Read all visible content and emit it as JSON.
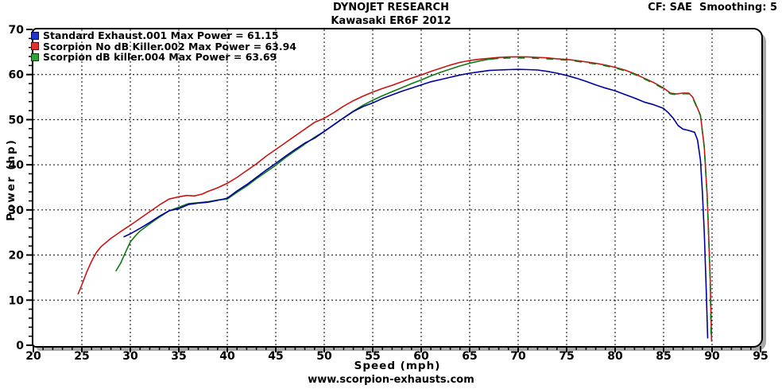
{
  "header": {
    "title": "DYNOJET RESEARCH",
    "subtitle": "Kawasaki ER6F 2012",
    "settings": "CF: SAE  Smoothing: 5"
  },
  "footer": {
    "website": "www.scorpion-exhausts.com"
  },
  "chart_data": {
    "type": "line",
    "title": "DYNOJET RESEARCH",
    "subtitle": "Kawasaki ER6F 2012",
    "xlabel": "Speed (mph)",
    "ylabel": "Power (hp)",
    "xlim": [
      20,
      95
    ],
    "ylim": [
      0,
      70
    ],
    "x_ticks": [
      20,
      25,
      30,
      35,
      40,
      45,
      50,
      55,
      60,
      65,
      70,
      75,
      80,
      85,
      90,
      95
    ],
    "y_ticks": [
      0,
      10,
      20,
      30,
      40,
      50,
      60,
      70
    ],
    "x_minor_step": 1,
    "y_minor_step": 2,
    "grid": true,
    "grid_color": "#000000",
    "shadow_color": "#a9a9a9",
    "legend_position": "top-left",
    "series": [
      {
        "name": "Standard Exhaust.001 Max Power = 61.15",
        "max_power": 61.15,
        "color": "#0000a0",
        "swatch_fill": "#2233cc",
        "swatch_border": "#000066",
        "points": [
          [
            29.3,
            24.0
          ],
          [
            30,
            24.7
          ],
          [
            31,
            25.9
          ],
          [
            32,
            27.2
          ],
          [
            33,
            28.6
          ],
          [
            34,
            29.8
          ],
          [
            35,
            30.3
          ],
          [
            36,
            31.2
          ],
          [
            37,
            31.5
          ],
          [
            38,
            31.7
          ],
          [
            39,
            32.1
          ],
          [
            40,
            32.6
          ],
          [
            41,
            34.2
          ],
          [
            42,
            35.6
          ],
          [
            43,
            37.2
          ],
          [
            44,
            38.8
          ],
          [
            45,
            40.3
          ],
          [
            46,
            41.9
          ],
          [
            47,
            43.4
          ],
          [
            48,
            44.8
          ],
          [
            49,
            45.9
          ],
          [
            50,
            47.4
          ],
          [
            51,
            48.9
          ],
          [
            52,
            50.4
          ],
          [
            53,
            51.8
          ],
          [
            54,
            52.9
          ],
          [
            55,
            53.7
          ],
          [
            56,
            54.7
          ],
          [
            57,
            55.5
          ],
          [
            58,
            56.3
          ],
          [
            59,
            57.0
          ],
          [
            60,
            57.7
          ],
          [
            61,
            58.4
          ],
          [
            62,
            58.9
          ],
          [
            63,
            59.4
          ],
          [
            64,
            59.9
          ],
          [
            65,
            60.3
          ],
          [
            66,
            60.6
          ],
          [
            67,
            60.9
          ],
          [
            68,
            61.0
          ],
          [
            69,
            61.1
          ],
          [
            70,
            61.15
          ],
          [
            71,
            61.1
          ],
          [
            72,
            61.0
          ],
          [
            73,
            60.7
          ],
          [
            74,
            60.3
          ],
          [
            75,
            59.8
          ],
          [
            76,
            59.2
          ],
          [
            77,
            58.5
          ],
          [
            78,
            57.7
          ],
          [
            79,
            57.0
          ],
          [
            80,
            56.4
          ],
          [
            81,
            55.6
          ],
          [
            82,
            54.8
          ],
          [
            83,
            53.9
          ],
          [
            84,
            53.3
          ],
          [
            85,
            52.5
          ],
          [
            85.5,
            51.5
          ],
          [
            86,
            50.3
          ],
          [
            86.5,
            48.7
          ],
          [
            87,
            47.9
          ],
          [
            87.6,
            47.6
          ],
          [
            88.2,
            47.2
          ],
          [
            88.5,
            45.5
          ],
          [
            88.8,
            41.0
          ],
          [
            89.0,
            34.0
          ],
          [
            89.2,
            25.0
          ],
          [
            89.4,
            12.0
          ],
          [
            89.55,
            1.5
          ]
        ]
      },
      {
        "name": "Scorpion No dB Killer.002 Max Power = 63.94",
        "max_power": 63.94,
        "color": "#c81414",
        "swatch_fill": "#e23333",
        "swatch_border": "#770000",
        "points": [
          [
            24.6,
            11.3
          ],
          [
            25,
            13.4
          ],
          [
            25.5,
            16.2
          ],
          [
            26,
            18.6
          ],
          [
            26.5,
            20.6
          ],
          [
            27,
            21.9
          ],
          [
            28,
            23.7
          ],
          [
            29,
            25.2
          ],
          [
            30,
            26.6
          ],
          [
            31,
            28.1
          ],
          [
            32,
            29.6
          ],
          [
            33,
            31.1
          ],
          [
            34,
            32.4
          ],
          [
            35,
            32.9
          ],
          [
            35.8,
            33.2
          ],
          [
            36.6,
            33.1
          ],
          [
            37.4,
            33.5
          ],
          [
            38,
            34.1
          ],
          [
            39,
            34.9
          ],
          [
            40,
            35.9
          ],
          [
            41,
            37.2
          ],
          [
            42,
            38.7
          ],
          [
            43,
            40.2
          ],
          [
            44,
            41.9
          ],
          [
            45,
            43.4
          ],
          [
            46,
            44.9
          ],
          [
            47,
            46.4
          ],
          [
            48,
            47.9
          ],
          [
            49,
            49.4
          ],
          [
            50,
            50.3
          ],
          [
            51,
            51.6
          ],
          [
            52,
            53.0
          ],
          [
            53,
            54.2
          ],
          [
            54,
            55.2
          ],
          [
            55,
            56.1
          ],
          [
            56,
            56.9
          ],
          [
            57,
            57.6
          ],
          [
            58,
            58.4
          ],
          [
            59,
            59.2
          ],
          [
            60,
            59.9
          ],
          [
            61,
            60.7
          ],
          [
            62,
            61.4
          ],
          [
            63,
            62.1
          ],
          [
            64,
            62.7
          ],
          [
            65,
            63.1
          ],
          [
            66,
            63.4
          ],
          [
            67,
            63.6
          ],
          [
            68,
            63.8
          ],
          [
            69,
            63.9
          ],
          [
            70,
            63.94
          ],
          [
            71,
            63.9
          ],
          [
            72,
            63.8
          ],
          [
            73,
            63.7
          ],
          [
            74,
            63.5
          ],
          [
            75,
            63.35
          ],
          [
            76,
            63.1
          ],
          [
            77,
            62.8
          ],
          [
            78,
            62.5
          ],
          [
            79,
            62.1
          ],
          [
            80,
            61.6
          ],
          [
            81,
            61.0
          ],
          [
            82,
            60.2
          ],
          [
            83,
            59.2
          ],
          [
            84,
            58.2
          ],
          [
            85,
            57.0
          ],
          [
            85.7,
            55.9
          ],
          [
            86.3,
            55.7
          ],
          [
            87,
            55.9
          ],
          [
            87.6,
            55.9
          ],
          [
            88,
            55.0
          ],
          [
            88.4,
            53.0
          ],
          [
            88.8,
            51.0
          ],
          [
            89.2,
            44.0
          ],
          [
            89.5,
            33.0
          ],
          [
            89.8,
            15.0
          ],
          [
            89.95,
            0.8
          ]
        ]
      },
      {
        "name": "Scorpion dB killer.004 Max Power = 63.69",
        "max_power": 63.69,
        "color": "#0e7a12",
        "swatch_fill": "#33a03a",
        "swatch_border": "#004400",
        "overlay_dashed_from": 67,
        "points": [
          [
            28.5,
            16.4
          ],
          [
            29,
            18.2
          ],
          [
            29.5,
            20.6
          ],
          [
            30,
            22.9
          ],
          [
            30.5,
            24.2
          ],
          [
            31,
            25.3
          ],
          [
            32,
            26.9
          ],
          [
            33,
            28.4
          ],
          [
            34,
            29.8
          ],
          [
            35,
            30.6
          ],
          [
            36,
            31.4
          ],
          [
            37,
            31.6
          ],
          [
            38,
            31.8
          ],
          [
            39,
            32.2
          ],
          [
            40,
            32.4
          ],
          [
            41,
            33.9
          ],
          [
            42,
            35.3
          ],
          [
            43,
            36.9
          ],
          [
            44,
            38.4
          ],
          [
            45,
            39.9
          ],
          [
            46,
            41.6
          ],
          [
            47,
            43.1
          ],
          [
            48,
            44.6
          ],
          [
            49,
            46.1
          ],
          [
            50,
            47.4
          ],
          [
            51,
            48.9
          ],
          [
            52,
            50.4
          ],
          [
            53,
            51.9
          ],
          [
            54,
            53.2
          ],
          [
            55,
            54.3
          ],
          [
            56,
            55.3
          ],
          [
            57,
            56.2
          ],
          [
            58,
            57.1
          ],
          [
            59,
            58.0
          ],
          [
            60,
            58.8
          ],
          [
            61,
            59.7
          ],
          [
            62,
            60.5
          ],
          [
            63,
            61.2
          ],
          [
            64,
            61.9
          ],
          [
            65,
            62.5
          ],
          [
            66,
            63.0
          ],
          [
            67,
            63.4
          ],
          [
            68,
            63.6
          ],
          [
            69,
            63.65
          ],
          [
            70,
            63.69
          ],
          [
            71,
            63.65
          ],
          [
            72,
            63.6
          ],
          [
            73,
            63.5
          ],
          [
            74,
            63.35
          ],
          [
            75,
            63.2
          ],
          [
            76,
            62.95
          ],
          [
            77,
            62.65
          ],
          [
            78,
            62.35
          ],
          [
            79,
            61.95
          ],
          [
            80,
            61.45
          ],
          [
            81,
            60.85
          ],
          [
            82,
            60.05
          ],
          [
            83,
            59.05
          ],
          [
            84,
            58.05
          ],
          [
            85,
            56.85
          ],
          [
            85.7,
            55.75
          ],
          [
            86.3,
            55.55
          ],
          [
            87,
            55.75
          ],
          [
            87.6,
            55.75
          ],
          [
            88,
            54.85
          ],
          [
            88.4,
            52.85
          ],
          [
            88.8,
            50.85
          ],
          [
            89.2,
            43.85
          ],
          [
            89.5,
            32.85
          ],
          [
            89.8,
            14.85
          ],
          [
            89.9,
            1.2
          ]
        ]
      }
    ]
  }
}
